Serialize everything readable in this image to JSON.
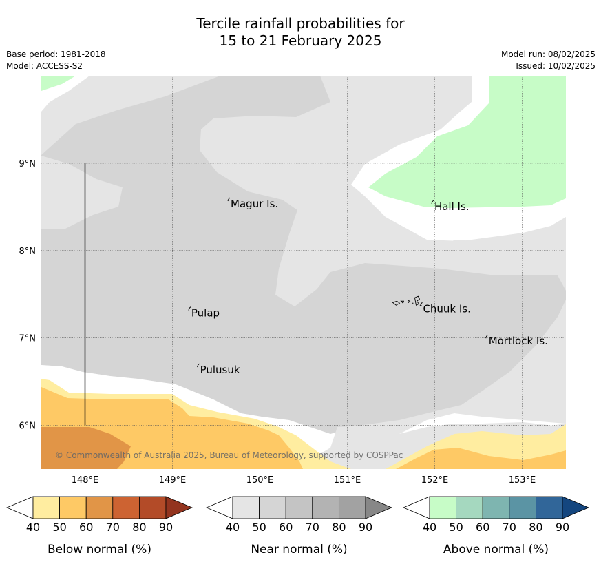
{
  "title": {
    "line1": "Tercile rainfall probabilities for",
    "line2": "15 to 21 February 2025"
  },
  "meta": {
    "base_period": "Base period: 1981-2018",
    "model": "Model: ACCESS-S2",
    "model_run": "Model run: 08/02/2025",
    "issued": "Issued: 10/02/2025"
  },
  "map": {
    "lon_range": [
      147.5,
      153.5
    ],
    "lat_range": [
      5.5,
      10.0
    ],
    "lon_ticks": [
      {
        "value": 148,
        "label": "148°E"
      },
      {
        "value": 149,
        "label": "149°E"
      },
      {
        "value": 150,
        "label": "150°E"
      },
      {
        "value": 151,
        "label": "151°E"
      },
      {
        "value": 152,
        "label": "152°E"
      },
      {
        "value": 153,
        "label": "153°E"
      }
    ],
    "lat_ticks": [
      {
        "value": 9,
        "label": "9°N"
      },
      {
        "value": 8,
        "label": "8°N"
      },
      {
        "value": 7,
        "label": "7°N"
      },
      {
        "value": 6,
        "label": "6°N"
      }
    ],
    "islands": [
      {
        "name": "Magur Is.",
        "lon": 149.65,
        "lat": 8.55
      },
      {
        "name": "Hall Is.",
        "lon": 151.98,
        "lat": 8.52
      },
      {
        "name": "Pulap",
        "lon": 149.2,
        "lat": 7.3
      },
      {
        "name": "Chuuk Is.",
        "lon": 151.85,
        "lat": 7.35
      },
      {
        "name": "Mortlock Is.",
        "lon": 152.6,
        "lat": 6.98
      },
      {
        "name": "Pulusuk",
        "lon": 149.3,
        "lat": 6.65
      }
    ],
    "meridian_line": {
      "lon": 148.0,
      "lat_from": 9.0,
      "lat_to": 6.0
    },
    "copyright": "© Commonwealth of Australia 2025, Bureau of Meteorology, supported by COSPPac"
  },
  "colorbars": [
    {
      "label": "Below normal (%)",
      "under_color": "#ffffff",
      "colors": [
        "#ffeda0",
        "#fec965",
        "#e19547",
        "#cd6332",
        "#b34b28"
      ],
      "over_color": "#93341f",
      "ticks": [
        "40",
        "50",
        "60",
        "70",
        "80",
        "90"
      ]
    },
    {
      "label": "Near normal (%)",
      "under_color": "#ffffff",
      "colors": [
        "#e5e5e5",
        "#d5d5d5",
        "#c4c4c4",
        "#b3b3b3",
        "#a2a2a2"
      ],
      "over_color": "#878787",
      "ticks": [
        "40",
        "50",
        "60",
        "70",
        "80",
        "90"
      ]
    },
    {
      "label": "Above normal (%)",
      "under_color": "#ffffff",
      "colors": [
        "#c7fcc7",
        "#a5d8bf",
        "#7eb5b0",
        "#5b94a4",
        "#316699"
      ],
      "over_color": "#14467f",
      "ticks": [
        "40",
        "50",
        "60",
        "70",
        "80",
        "90"
      ]
    }
  ]
}
